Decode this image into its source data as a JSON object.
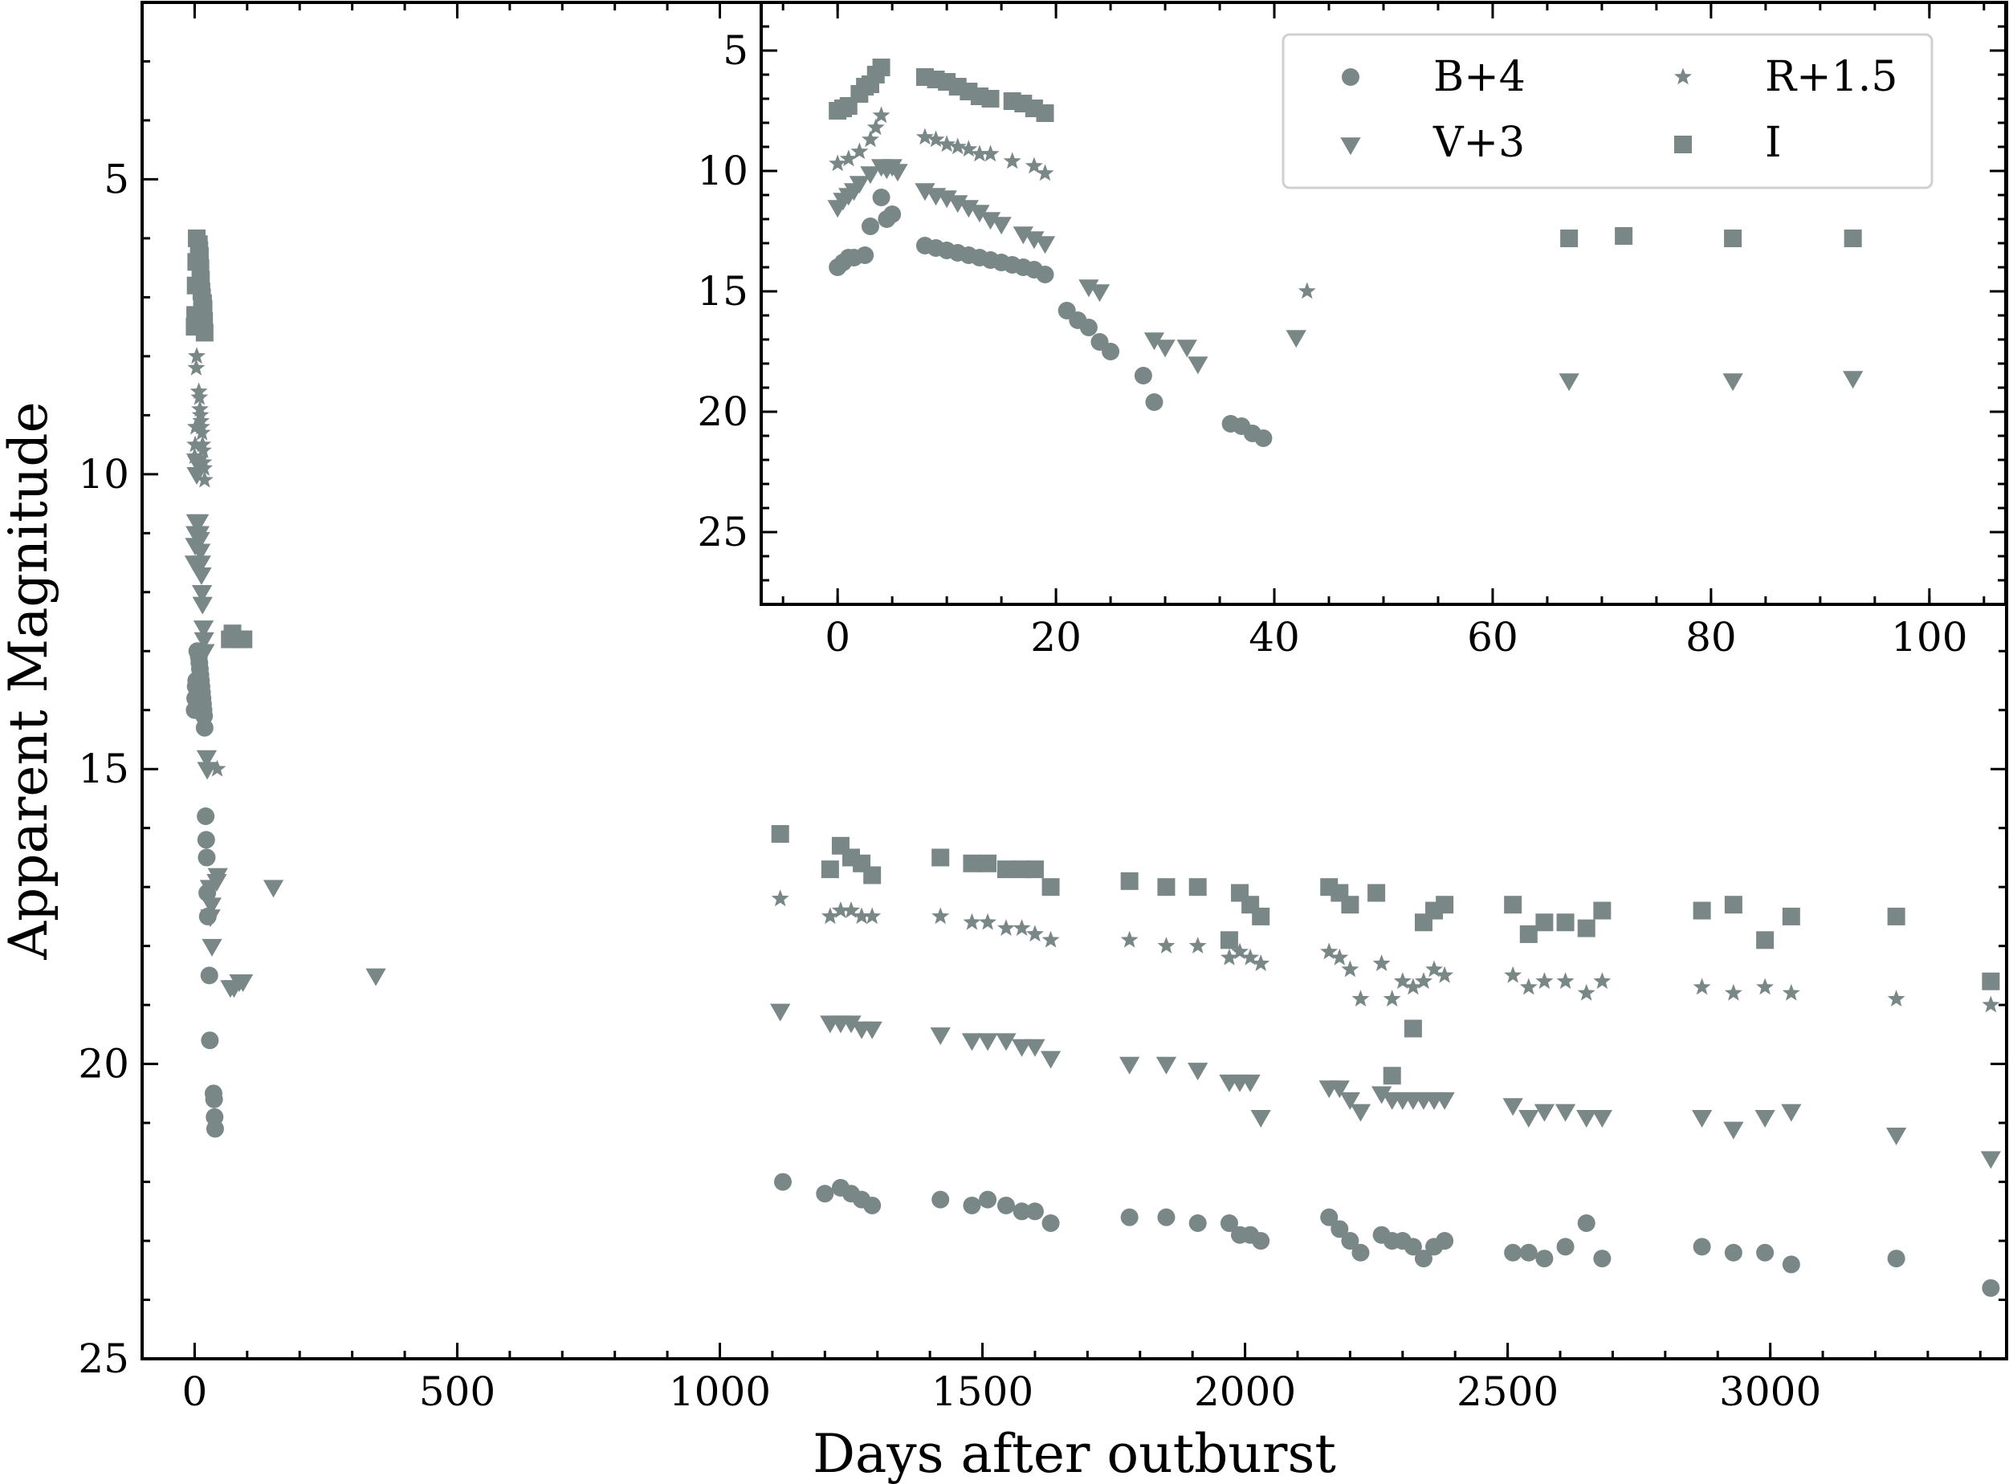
{
  "colors": {
    "marker": "#7a8787",
    "axes": "#000000",
    "background": "#ffffff"
  },
  "chart_data": [
    {
      "id": "main",
      "type": "scatter",
      "title": "",
      "xlabel": "Days after outburst",
      "ylabel": "Apparent Magnitude",
      "xlim": [
        -100,
        3450
      ],
      "ylim": [
        25,
        2
      ],
      "y_inverted": true,
      "xticks": [
        0,
        500,
        1000,
        1500,
        2000,
        2500,
        3000
      ],
      "xtick_labels": [
        "0",
        "500",
        "1000",
        "1500",
        "2000",
        "2500",
        "3000"
      ],
      "yticks": [
        5,
        10,
        15,
        20,
        25
      ],
      "ytick_labels": [
        "5",
        "10",
        "15",
        "20",
        "25"
      ],
      "grid": false,
      "series": [
        {
          "name": "B+4",
          "marker": "circle",
          "x": [
            0,
            1,
            2,
            3,
            5,
            8,
            9,
            10,
            11,
            12,
            13,
            14,
            15,
            16,
            17,
            18,
            19,
            21,
            22,
            23,
            24,
            25,
            28,
            29,
            36,
            37,
            38,
            39,
            1120,
            1200,
            1230,
            1250,
            1270,
            1290,
            1420,
            1480,
            1510,
            1545,
            1575,
            1600,
            1630,
            1780,
            1850,
            1910,
            1970,
            1990,
            2010,
            2030,
            2160,
            2180,
            2200,
            2220,
            2260,
            2280,
            2300,
            2320,
            2340,
            2360,
            2380,
            2510,
            2540,
            2570,
            2610,
            2650,
            2680,
            2870,
            2930,
            2990,
            3040,
            3240,
            3420
          ],
          "y": [
            14,
            13.8,
            13.6,
            13.5,
            13,
            13.1,
            13.2,
            13.3,
            13.4,
            13.5,
            13.6,
            13.7,
            13.8,
            13.9,
            14,
            14.1,
            14.3,
            15.8,
            16.2,
            16.5,
            17.1,
            17.5,
            18.5,
            19.6,
            20.5,
            20.6,
            20.9,
            21.1,
            22,
            22.2,
            22.1,
            22.2,
            22.3,
            22.4,
            22.3,
            22.4,
            22.3,
            22.4,
            22.5,
            22.5,
            22.7,
            22.6,
            22.6,
            22.7,
            22.7,
            22.9,
            22.9,
            23,
            22.6,
            22.8,
            23,
            23.2,
            22.9,
            23,
            23,
            23.1,
            23.3,
            23.1,
            23,
            23.2,
            23.2,
            23.3,
            23.1,
            22.7,
            23.3,
            23.1,
            23.2,
            23.2,
            23.4,
            23.3,
            23.8
          ]
        },
        {
          "name": "V+3",
          "marker": "triangle-down",
          "x": [
            0,
            1,
            2,
            3,
            4,
            5,
            6,
            8,
            9,
            10,
            11,
            12,
            13,
            14,
            15,
            17,
            18,
            19,
            23,
            24,
            29,
            30,
            32,
            33,
            42,
            44,
            68,
            75,
            85,
            92,
            150,
            345,
            1115,
            1210,
            1230,
            1250,
            1270,
            1290,
            1420,
            1480,
            1510,
            1545,
            1575,
            1600,
            1630,
            1780,
            1850,
            1910,
            1970,
            1990,
            2010,
            2030,
            2160,
            2180,
            2200,
            2220,
            2260,
            2280,
            2300,
            2320,
            2340,
            2360,
            2380,
            2510,
            2540,
            2570,
            2610,
            2650,
            2680,
            2870,
            2930,
            2990,
            3040,
            3240,
            3420
          ],
          "y": [
            11.5,
            11.2,
            11,
            10.8,
            10,
            9.8,
            9.8,
            10.8,
            11,
            11.1,
            11.3,
            11.5,
            11.7,
            12,
            12.2,
            12.6,
            12.8,
            13,
            14.8,
            15,
            17,
            17.5,
            17.3,
            18,
            16.9,
            16.8,
            18.7,
            18.7,
            18.6,
            18.6,
            17,
            18.5,
            19.1,
            19.3,
            19.3,
            19.3,
            19.4,
            19.4,
            19.5,
            19.6,
            19.6,
            19.6,
            19.7,
            19.7,
            19.9,
            20,
            20,
            20.1,
            20.3,
            20.3,
            20.3,
            20.9,
            20.4,
            20.4,
            20.6,
            20.8,
            20.5,
            20.6,
            20.6,
            20.6,
            20.6,
            20.6,
            20.6,
            20.7,
            20.9,
            20.8,
            20.8,
            20.9,
            20.9,
            20.9,
            21.1,
            20.9,
            20.8,
            21.2,
            21.6
          ]
        },
        {
          "name": "R+1.5",
          "marker": "star",
          "x": [
            0,
            1,
            2,
            3,
            4,
            8,
            9,
            10,
            11,
            12,
            13,
            14,
            15,
            16,
            17,
            18,
            19,
            43,
            1115,
            1210,
            1230,
            1250,
            1270,
            1290,
            1420,
            1480,
            1510,
            1545,
            1575,
            1600,
            1630,
            1780,
            1850,
            1910,
            1970,
            1990,
            2010,
            2030,
            2160,
            2180,
            2200,
            2220,
            2260,
            2280,
            2300,
            2320,
            2340,
            2360,
            2380,
            2510,
            2540,
            2570,
            2610,
            2650,
            2680,
            2870,
            2930,
            2990,
            3040,
            3240,
            3420
          ],
          "y": [
            9.7,
            9.5,
            9.2,
            8.2,
            8,
            8.6,
            8.7,
            8.9,
            9,
            9.1,
            9.2,
            9.3,
            9.5,
            9.6,
            9.8,
            9.9,
            10.1,
            15,
            17.2,
            17.5,
            17.4,
            17.4,
            17.5,
            17.5,
            17.5,
            17.6,
            17.6,
            17.7,
            17.7,
            17.8,
            17.9,
            17.9,
            18,
            18,
            18.2,
            18.1,
            18.2,
            18.3,
            18.1,
            18.2,
            18.4,
            18.9,
            18.3,
            18.9,
            18.6,
            18.7,
            18.6,
            18.4,
            18.5,
            18.5,
            18.7,
            18.6,
            18.6,
            18.8,
            18.6,
            18.7,
            18.8,
            18.7,
            18.8,
            18.9,
            19
          ]
        },
        {
          "name": "I",
          "marker": "square",
          "x": [
            0,
            1,
            2,
            3,
            4,
            8,
            9,
            10,
            11,
            12,
            13,
            14,
            16,
            17,
            18,
            19,
            67,
            72,
            82,
            93,
            1115,
            1210,
            1230,
            1250,
            1270,
            1290,
            1420,
            1480,
            1510,
            1545,
            1575,
            1600,
            1630,
            1780,
            1850,
            1910,
            1970,
            1990,
            2010,
            2030,
            2160,
            2180,
            2200,
            2250,
            2280,
            2320,
            2340,
            2360,
            2380,
            2510,
            2540,
            2570,
            2610,
            2650,
            2680,
            2870,
            2930,
            2990,
            3040,
            3240,
            3420
          ],
          "y": [
            7.5,
            7.3,
            6.8,
            6.4,
            6,
            6.1,
            6.2,
            6.3,
            6.5,
            6.7,
            6.9,
            7,
            7.1,
            7.2,
            7.4,
            7.6,
            12.8,
            12.7,
            12.8,
            12.8,
            16.1,
            16.7,
            16.3,
            16.5,
            16.6,
            16.8,
            16.5,
            16.6,
            16.6,
            16.7,
            16.7,
            16.7,
            17,
            16.9,
            17,
            17,
            17.9,
            17.1,
            17.3,
            17.5,
            17,
            17.1,
            17.3,
            17.1,
            20.2,
            19.4,
            17.6,
            17.4,
            17.3,
            17.3,
            17.8,
            17.6,
            17.6,
            17.7,
            17.4,
            17.4,
            17.3,
            17.9,
            17.5,
            17.5,
            18.6
          ]
        }
      ]
    },
    {
      "id": "inset",
      "type": "scatter",
      "title": "",
      "xlabel": "",
      "ylabel": "",
      "xlim": [
        -7,
        107
      ],
      "ylim": [
        28,
        3
      ],
      "y_inverted": true,
      "xticks": [
        0,
        20,
        40,
        60,
        80,
        100
      ],
      "xtick_labels": [
        "0",
        "20",
        "40",
        "60",
        "80",
        "100"
      ],
      "yticks": [
        5,
        10,
        15,
        20,
        25
      ],
      "ytick_labels": [
        "5",
        "10",
        "15",
        "20",
        "25"
      ],
      "legend_position": "top-right",
      "legend_columns": 2,
      "series": [
        {
          "name": "B+4",
          "marker": "circle",
          "x": [
            0,
            0.5,
            1,
            1.5,
            2.5,
            3,
            4,
            4.5,
            5,
            8,
            9,
            10,
            11,
            12,
            13,
            14,
            15,
            16,
            17,
            18,
            19,
            21,
            22,
            23,
            24,
            25,
            28,
            29,
            36,
            37,
            38,
            39
          ],
          "y": [
            14,
            13.8,
            13.6,
            13.6,
            13.5,
            12.3,
            11.1,
            12,
            11.8,
            13.1,
            13.2,
            13.3,
            13.4,
            13.5,
            13.6,
            13.7,
            13.8,
            13.9,
            14,
            14.1,
            14.3,
            15.8,
            16.2,
            16.5,
            17.1,
            17.5,
            18.5,
            19.6,
            20.5,
            20.6,
            20.9,
            21.1
          ]
        },
        {
          "name": "V+3",
          "marker": "triangle-down",
          "x": [
            0,
            0.5,
            1,
            1.5,
            2,
            3,
            4,
            4.5,
            5,
            5.5,
            8,
            9,
            10,
            11,
            12,
            13,
            14,
            15,
            17,
            18,
            19,
            23,
            24,
            29,
            30,
            32,
            33,
            42,
            67,
            82,
            93
          ],
          "y": [
            11.5,
            11.2,
            11,
            10.8,
            10.5,
            10.1,
            9.8,
            9.9,
            9.8,
            10,
            10.8,
            11,
            11.1,
            11.3,
            11.5,
            11.7,
            12,
            12.2,
            12.6,
            12.8,
            13,
            14.8,
            15,
            17,
            17.3,
            17.3,
            18,
            16.9,
            18.7,
            18.7,
            18.6
          ]
        },
        {
          "name": "R+1.5",
          "marker": "star",
          "x": [
            0,
            1,
            2,
            3,
            3.5,
            4,
            8,
            9,
            10,
            11,
            12,
            13,
            14,
            16,
            18,
            19,
            43
          ],
          "y": [
            9.7,
            9.5,
            9.2,
            8.7,
            8.2,
            7.7,
            8.6,
            8.7,
            8.9,
            9,
            9.1,
            9.3,
            9.3,
            9.6,
            9.8,
            10.1,
            15
          ]
        },
        {
          "name": "I",
          "marker": "square",
          "x": [
            0,
            0.5,
            1,
            2,
            2.5,
            3,
            3.5,
            4,
            8,
            9,
            10,
            11,
            12,
            13,
            14,
            16,
            17,
            18,
            19,
            67,
            72,
            82,
            93
          ],
          "y": [
            7.5,
            7.4,
            7.3,
            6.8,
            6.5,
            6.4,
            6,
            5.7,
            6.1,
            6.2,
            6.3,
            6.5,
            6.7,
            6.9,
            7,
            7.1,
            7.2,
            7.4,
            7.6,
            12.8,
            12.7,
            12.8,
            12.8
          ]
        }
      ]
    }
  ]
}
